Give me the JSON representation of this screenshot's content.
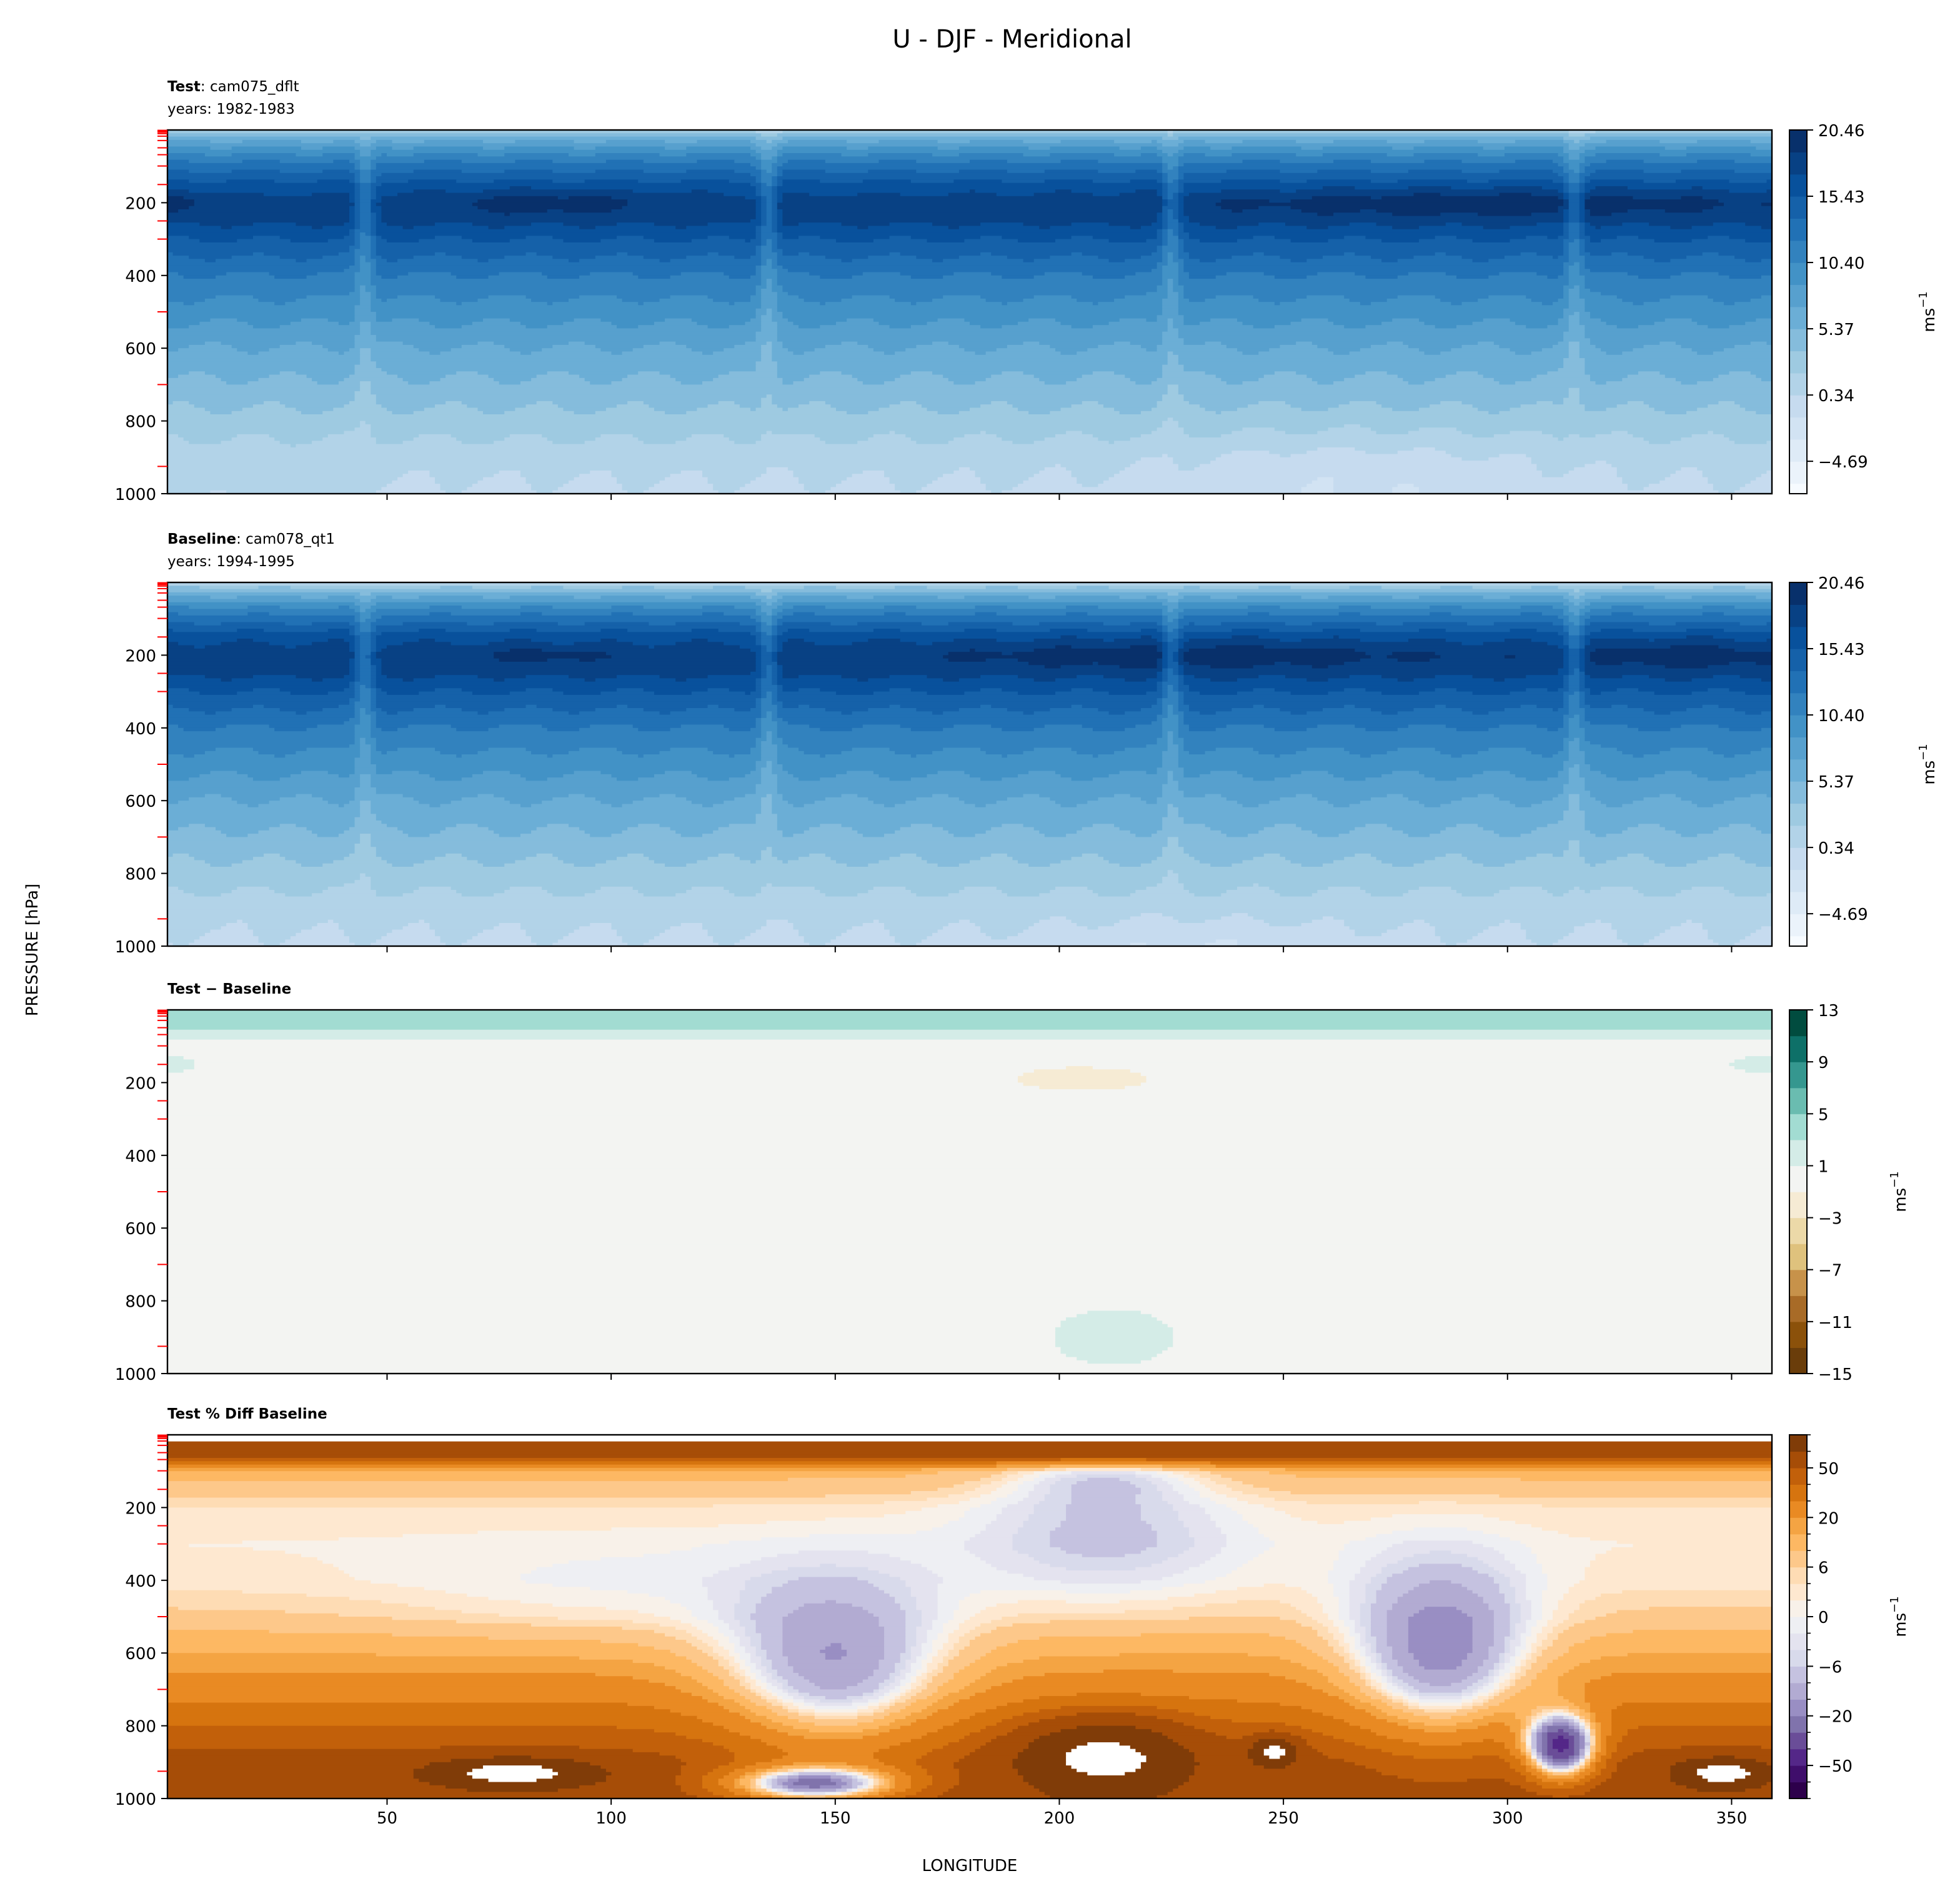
{
  "figure_title": "U - DJF - Meridional",
  "xlabel": "LONGITUDE",
  "ylabel": "PRESSURE [hPa]",
  "chart_data": [
    {
      "type": "heatmap",
      "subtype": "filled-contour",
      "title_bold": "Test",
      "title_rest": ": cam075_dflt",
      "years": "years: 1982-1983",
      "xlim": [
        1,
        359
      ],
      "ylim": [
        1000,
        0
      ],
      "xticks": [
        50,
        100,
        150,
        200,
        250,
        300,
        350
      ],
      "yticks": [
        200,
        400,
        600,
        800,
        1000
      ],
      "model_levels_hPa": [
        1,
        3,
        6,
        10,
        17,
        29,
        49,
        68,
        99,
        150,
        250,
        300,
        500,
        700,
        925
      ],
      "colorbar": {
        "label": "ms",
        "label_sup": "−1",
        "range": [
          -7.15,
          20.46
        ],
        "levels_start": 20.46,
        "levels_step": -1.677,
        "ticks": [
          20.46,
          15.43,
          10.4,
          5.37,
          0.34,
          -4.69
        ],
        "tick_labels": [
          "20.46",
          "15.43",
          "10.40",
          "5.37",
          "0.34",
          "−4.69"
        ],
        "colormap": [
          "#f7fbff",
          "#deebf7",
          "#c6dbef",
          "#9ecae1",
          "#6baed6",
          "#4292c6",
          "#2171b5",
          "#08519c",
          "#08306b"
        ],
        "out_of_range": "clamp"
      },
      "field": {
        "profile_p": [
          0,
          10,
          30,
          60,
          100,
          150,
          200,
          250,
          300,
          400,
          500,
          600,
          700,
          800,
          900,
          1000
        ],
        "profile_v": [
          1,
          4,
          7,
          10,
          13,
          16,
          18,
          17.5,
          15.5,
          12,
          9.5,
          7,
          5,
          3,
          1,
          0
        ],
        "spike_longitudes": [
          45,
          135,
          225,
          315
        ],
        "spike_strength": 0.25,
        "anomalies": [
          {
            "lon": 85,
            "p": 200,
            "dlon": 22,
            "dp": 35,
            "amp": 2
          },
          {
            "lon": 295,
            "p": 200,
            "dlon": 60,
            "dp": 40,
            "amp": 2.2
          },
          {
            "lon": 3,
            "p": 200,
            "dlon": 6,
            "dp": 35,
            "amp": 2
          },
          {
            "lon": 265,
            "p": 950,
            "dlon": 40,
            "dp": 120,
            "amp": -1.5
          },
          {
            "lon": 25,
            "p": 980,
            "dlon": 15,
            "dp": 60,
            "amp": 1.2
          }
        ]
      }
    },
    {
      "type": "heatmap",
      "subtype": "filled-contour",
      "title_bold": "Baseline",
      "title_rest": ": cam078_qt1",
      "years": "years: 1994-1995",
      "xlim": [
        1,
        359
      ],
      "ylim": [
        1000,
        0
      ],
      "xticks": [
        50,
        100,
        150,
        200,
        250,
        300,
        350
      ],
      "yticks": [
        200,
        400,
        600,
        800,
        1000
      ],
      "model_levels_hPa": [
        1,
        3,
        6,
        10,
        17,
        29,
        49,
        68,
        99,
        150,
        250,
        300,
        500,
        700,
        925
      ],
      "colorbar": {
        "label": "ms",
        "label_sup": "−1",
        "range": [
          -7.15,
          20.46
        ],
        "levels_start": 20.46,
        "levels_step": -1.677,
        "ticks": [
          20.46,
          15.43,
          10.4,
          5.37,
          0.34,
          -4.69
        ],
        "tick_labels": [
          "20.46",
          "15.43",
          "10.40",
          "5.37",
          "0.34",
          "−4.69"
        ],
        "colormap": [
          "#f7fbff",
          "#deebf7",
          "#c6dbef",
          "#9ecae1",
          "#6baed6",
          "#4292c6",
          "#2171b5",
          "#08519c",
          "#08306b"
        ],
        "out_of_range": "clamp"
      },
      "field": {
        "profile_p": [
          0,
          10,
          30,
          60,
          100,
          150,
          200,
          250,
          300,
          400,
          500,
          600,
          700,
          800,
          900,
          1000
        ],
        "profile_v": [
          0.5,
          3,
          6,
          9.5,
          13,
          16.5,
          18.2,
          17.5,
          15.5,
          12,
          9.5,
          7,
          5,
          3,
          1,
          0
        ],
        "spike_longitudes": [
          45,
          135,
          225,
          315
        ],
        "spike_strength": 0.25,
        "anomalies": [
          {
            "lon": 85,
            "p": 200,
            "dlon": 12,
            "dp": 25,
            "amp": 1.5
          },
          {
            "lon": 228,
            "p": 200,
            "dlon": 50,
            "dp": 40,
            "amp": 2
          },
          {
            "lon": 340,
            "p": 200,
            "dlon": 22,
            "dp": 40,
            "amp": 2
          },
          {
            "lon": 230,
            "p": 990,
            "dlon": 30,
            "dp": 60,
            "amp": -1.3
          }
        ]
      }
    },
    {
      "type": "heatmap",
      "subtype": "filled-contour",
      "title_bold": "Test − Baseline",
      "xlim": [
        1,
        359
      ],
      "ylim": [
        1000,
        0
      ],
      "xticks": [
        50,
        100,
        150,
        200,
        250,
        300,
        350
      ],
      "yticks": [
        200,
        400,
        600,
        800,
        1000
      ],
      "model_levels_hPa": [
        1,
        3,
        6,
        10,
        17,
        29,
        49,
        68,
        99,
        150,
        250,
        300,
        500,
        700,
        925
      ],
      "colorbar": {
        "label": "ms",
        "label_sup": "−1",
        "range": [
          -15,
          13
        ],
        "levels_start": -15,
        "levels_step": 2,
        "ticks": [
          13,
          9,
          5,
          1,
          -3,
          -7,
          -11,
          -15
        ],
        "tick_labels": [
          "13",
          "9",
          "5",
          "1",
          "−3",
          "−7",
          "−11",
          "−15"
        ],
        "colors": [
          "#6a3d0a",
          "#8b510a",
          "#a86b27",
          "#c7924a",
          "#dfc27d",
          "#ecd9a8",
          "#f6ebd4",
          "#f3f4f2",
          "#d4ece7",
          "#a2dcd2",
          "#6abcb0",
          "#35978f",
          "#0e7068",
          "#014c3f"
        ],
        "out_of_range": "clamp"
      },
      "field": {
        "profile_p": [
          0,
          10,
          20,
          40,
          60,
          80,
          100,
          1000
        ],
        "profile_v": [
          3,
          4,
          3,
          4,
          2.5,
          0.8,
          0.3,
          0.2
        ],
        "spike_longitudes": [],
        "spike_strength": 0,
        "anomalies": [
          {
            "lon": 205,
            "p": 190,
            "dlon": 25,
            "dp": 55,
            "amp": -1.8
          },
          {
            "lon": 212,
            "p": 900,
            "dlon": 16,
            "dp": 90,
            "amp": 1.6
          },
          {
            "lon": 0,
            "p": 150,
            "dlon": 8,
            "dp": 30,
            "amp": 1.5
          },
          {
            "lon": 360,
            "p": 150,
            "dlon": 12,
            "dp": 30,
            "amp": 1.5
          }
        ]
      }
    },
    {
      "type": "heatmap",
      "subtype": "filled-contour",
      "title_bold": "Test % Diff Baseline",
      "xlim": [
        1,
        359
      ],
      "ylim": [
        1000,
        0
      ],
      "xticks": [
        50,
        100,
        150,
        200,
        250,
        300,
        350
      ],
      "yticks": [
        200,
        400,
        600,
        800,
        1000
      ],
      "model_levels_hPa": [
        1,
        3,
        6,
        10,
        17,
        29,
        49,
        68,
        99,
        150,
        250,
        300,
        500,
        700,
        925
      ],
      "colorbar": {
        "label": "ms",
        "label_sup": "−1",
        "levels": [
          -100,
          -70,
          -50,
          -40,
          -30,
          -20,
          -15,
          -10,
          -6,
          -4,
          -2,
          0,
          2,
          4,
          6,
          10,
          15,
          20,
          30,
          40,
          50,
          70,
          100
        ],
        "ticks": [
          50,
          20,
          6,
          0,
          -6,
          -20,
          -50
        ],
        "tick_labels": [
          "50",
          "20",
          "6",
          "0",
          "−6",
          "−20",
          "−50"
        ],
        "colors": [
          "#2d004b",
          "#3f0e6b",
          "#542788",
          "#6a4d98",
          "#8073ac",
          "#998ec3",
          "#b2abd2",
          "#c5c2e0",
          "#d8daeb",
          "#e4e3ef",
          "#eeeff3",
          "#f8f1e9",
          "#fee8d0",
          "#fedcb4",
          "#fdc88a",
          "#fdb863",
          "#f4a443",
          "#e98a23",
          "#d6740f",
          "#c2600a",
          "#a64d07",
          "#803c08"
        ],
        "out_of_range": "#ffffff"
      },
      "field": {
        "profile_p": [
          0,
          15,
          20,
          30,
          60,
          80,
          100,
          150,
          200,
          300,
          400,
          500,
          600,
          700,
          800,
          900,
          1000
        ],
        "profile_v": [
          120,
          120,
          60,
          70,
          60,
          30,
          12,
          8,
          4,
          2,
          3,
          7,
          15,
          25,
          40,
          55,
          60
        ],
        "spike_longitudes": [],
        "spike_strength": 0,
        "anomalies": [
          {
            "lon": 210,
            "p": 250,
            "dlon": 30,
            "dp": 200,
            "amp": -10
          },
          {
            "lon": 210,
            "p": 120,
            "dlon": 20,
            "dp": 60,
            "amp": -10
          },
          {
            "lon": 150,
            "p": 700,
            "dlon": 25,
            "dp": 250,
            "amp": -35
          },
          {
            "lon": 145,
            "p": 960,
            "dlon": 20,
            "dp": 50,
            "amp": -70
          },
          {
            "lon": 285,
            "p": 650,
            "dlon": 20,
            "dp": 250,
            "amp": -35
          },
          {
            "lon": 312,
            "p": 860,
            "dlon": 8,
            "dp": 90,
            "amp": -90
          },
          {
            "lon": 210,
            "p": 880,
            "dlon": 18,
            "dp": 100,
            "amp": 60
          },
          {
            "lon": 248,
            "p": 870,
            "dlon": 5,
            "dp": 40,
            "amp": 60
          },
          {
            "lon": 78,
            "p": 930,
            "dlon": 18,
            "dp": 40,
            "amp": 60
          },
          {
            "lon": 348,
            "p": 930,
            "dlon": 10,
            "dp": 40,
            "amp": 60
          },
          {
            "lon": 100,
            "p": 450,
            "dlon": 50,
            "dp": 150,
            "amp": -4
          }
        ]
      }
    }
  ]
}
